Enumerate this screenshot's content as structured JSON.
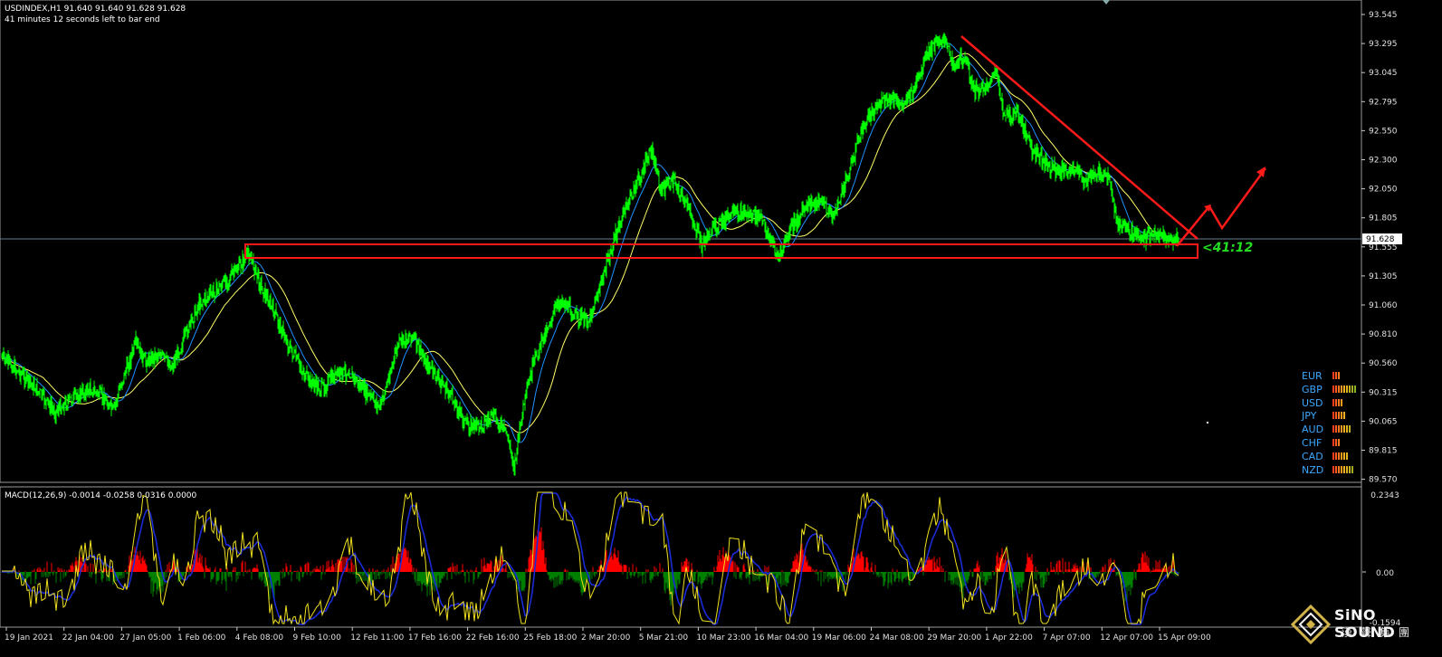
{
  "header": {
    "symbol_line": "USDINDEX,H1  91.640 91.640 91.628 91.628",
    "timer_line": "41 minutes 12 seconds left to bar end"
  },
  "price_axis": {
    "ticks": [
      "93.545",
      "93.295",
      "93.045",
      "92.795",
      "92.550",
      "92.300",
      "92.050",
      "91.805",
      "91.555",
      "91.305",
      "91.060",
      "90.810",
      "90.560",
      "90.315",
      "90.065",
      "89.815",
      "89.570"
    ],
    "current_price": "91.628"
  },
  "annotation": {
    "countdown": "<41:12"
  },
  "macd": {
    "label": "MACD(12,26,9) -0.0014 -0.0258 0.0316 0.0000",
    "ticks": [
      "0.2343",
      "0.00",
      "-0.1594"
    ]
  },
  "time_axis": {
    "labels": [
      "19 Jan 2021",
      "22 Jan 04:00",
      "27 Jan 05:00",
      "1 Feb 06:00",
      "4 Feb 08:00",
      "9 Feb 10:00",
      "12 Feb 11:00",
      "17 Feb 16:00",
      "22 Feb 16:00",
      "25 Feb 18:00",
      "2 Mar 20:00",
      "5 Mar 21:00",
      "10 Mar 23:00",
      "16 Mar 04:00",
      "19 Mar 06:00",
      "24 Mar 08:00",
      "29 Mar 20:00",
      "1 Apr 22:00",
      "7 Apr 07:00",
      "12 Apr 07:00",
      "15 Apr 09:00"
    ]
  },
  "currency_strength": [
    {
      "name": "EUR",
      "bars": [
        "#ff3b1f",
        "#ff5a1f",
        "#ff7a1f"
      ]
    },
    {
      "name": "GBP",
      "bars": [
        "#ff3b1f",
        "#ff5a1f",
        "#ff7a1f",
        "#ff9a1f",
        "#ffb01f",
        "#e0b020",
        "#c0b020",
        "#a0b020",
        "#88b020"
      ]
    },
    {
      "name": "USD",
      "bars": [
        "#ff3b1f",
        "#ff5a1f",
        "#ff7a1f",
        "#ff9a1f"
      ]
    },
    {
      "name": "JPY",
      "bars": [
        "#ff3b1f",
        "#ff5a1f",
        "#ff7a1f",
        "#ff9a1f",
        "#ffb01f"
      ]
    },
    {
      "name": "AUD",
      "bars": [
        "#ff3b1f",
        "#ff5a1f",
        "#ff7a1f",
        "#ff9a1f",
        "#ffb01f",
        "#e0b020",
        "#c0b020"
      ]
    },
    {
      "name": "CHF",
      "bars": [
        "#ff3b1f",
        "#ff5a1f",
        "#ff7a1f"
      ]
    },
    {
      "name": "CAD",
      "bars": [
        "#ff3b1f",
        "#ff5a1f",
        "#ff7a1f",
        "#ff9a1f",
        "#ffb01f",
        "#e0b020"
      ]
    },
    {
      "name": "NZD",
      "bars": [
        "#ff3b1f",
        "#ff5a1f",
        "#ff7a1f",
        "#ff9a1f",
        "#ffb01f",
        "#e0b020",
        "#c0b020",
        "#a0b020"
      ]
    }
  ],
  "logo": {
    "name": "SiNO SOUND",
    "sub": "漢聲集團"
  },
  "colors": {
    "candles": "#00ff00",
    "fast_ma": "#1e90ff",
    "slow_ma": "#ffff66",
    "annotation": "#ff1a1a",
    "macd_pos": "#ff0000",
    "macd_neg": "#008000"
  }
}
